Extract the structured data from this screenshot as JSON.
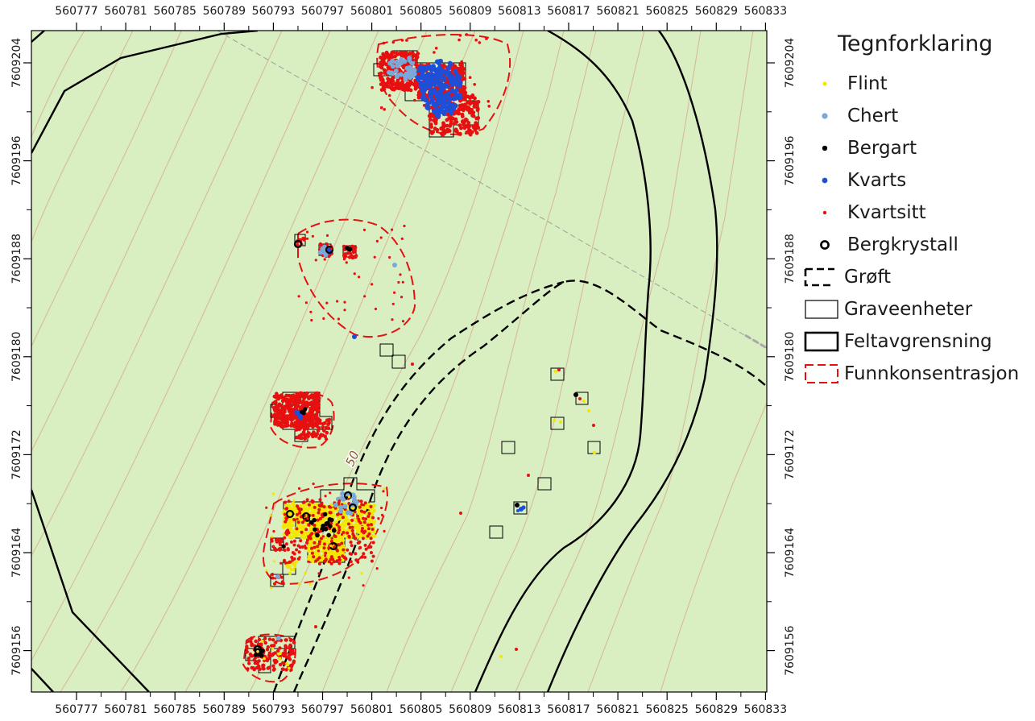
{
  "map": {
    "x_ticks": [
      "560777",
      "560781",
      "560785",
      "560789",
      "560793",
      "560797",
      "560801",
      "560805",
      "560809",
      "560813",
      "560817",
      "560821",
      "560825",
      "560829",
      "560833"
    ],
    "y_ticks": [
      "7609204",
      "7609196",
      "7609188",
      "7609180",
      "7609172",
      "7609164",
      "7609156"
    ],
    "contour_label": "50",
    "colors": {
      "background": "#d9efc2",
      "contour": "#d7b99a",
      "flint": "#f3e600",
      "chert": "#7aa9d9",
      "bergart": "#000000",
      "kvarts": "#1d4fd8",
      "kvartsitt": "#e61010",
      "concentration": "#e61010",
      "boundary": "#000000"
    }
  },
  "legend": {
    "title": "Tegnforklaring",
    "items": [
      {
        "label": "Flint",
        "icon": "yellow-dot"
      },
      {
        "label": "Chert",
        "icon": "light-blue-dot"
      },
      {
        "label": "Bergart",
        "icon": "black-dot"
      },
      {
        "label": "Kvarts",
        "icon": "blue-dot"
      },
      {
        "label": "Kvartsitt",
        "icon": "red-dot"
      },
      {
        "label": "Bergkrystall",
        "icon": "black-ring"
      },
      {
        "label": "Grøft",
        "icon": "dashed-bracket"
      },
      {
        "label": "Graveenheter",
        "icon": "thin-rectangle"
      },
      {
        "label": "Feltavgrensning",
        "icon": "thick-rectangle"
      },
      {
        "label": "Funnkonsentrasjon",
        "icon": "red-dashed-rectangle"
      }
    ]
  }
}
